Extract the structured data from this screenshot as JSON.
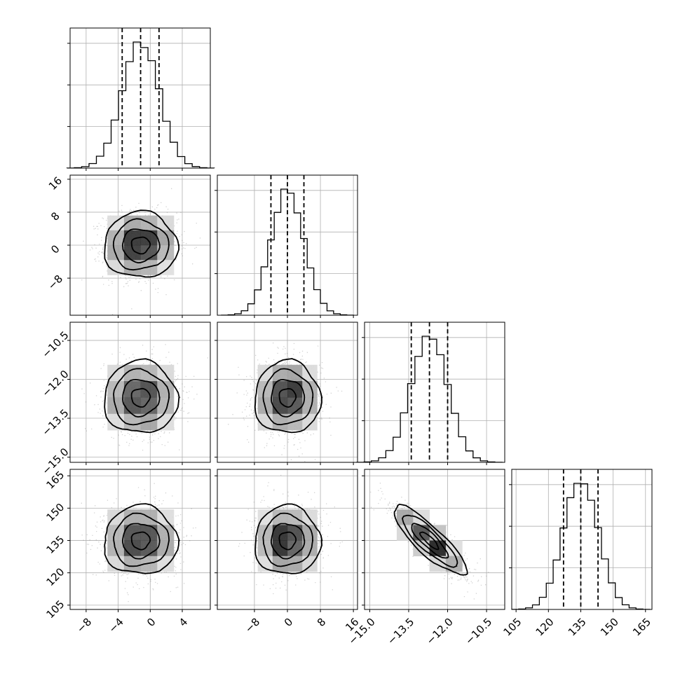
{
  "chart_data": {
    "type": "corner",
    "title": "",
    "grid": true,
    "parameters": [
      {
        "index": 0,
        "range": [
          -10,
          7.5
        ],
        "ticks": [
          -8,
          -4,
          0,
          4
        ],
        "tick_labels": [
          "−8",
          "−4",
          "0",
          "4"
        ],
        "mean": -1.2,
        "sigma": 2.3,
        "quantiles": [
          -3.5,
          -1.2,
          1.1
        ]
      },
      {
        "index": 1,
        "range": [
          -17,
          17
        ],
        "ticks": [
          -8,
          0,
          8,
          16
        ],
        "tick_labels": [
          "−8",
          "0",
          "8",
          "16"
        ],
        "mean": 0,
        "sigma": 4,
        "quantiles": [
          -4,
          0,
          4
        ]
      },
      {
        "index": 2,
        "range": [
          -15.2,
          -9.8
        ],
        "ticks": [
          -15.0,
          -13.5,
          -12.0,
          -10.5
        ],
        "tick_labels": [
          "−15.0",
          "−13.5",
          "−12.0",
          "−10.5"
        ],
        "mean": -12.7,
        "sigma": 0.7,
        "quantiles": [
          -13.4,
          -12.7,
          -12.0
        ]
      },
      {
        "index": 3,
        "range": [
          103,
          168
        ],
        "ticks": [
          105,
          120,
          135,
          150,
          165
        ],
        "tick_labels": [
          "105",
          "120",
          "135",
          "150",
          "165"
        ],
        "mean": 135,
        "sigma": 8,
        "quantiles": [
          127,
          135,
          143
        ]
      }
    ],
    "pairs": [
      {
        "x": 0,
        "y": 1,
        "correlation": 0.0
      },
      {
        "x": 0,
        "y": 2,
        "correlation": 0.0
      },
      {
        "x": 1,
        "y": 2,
        "correlation": 0.0
      },
      {
        "x": 0,
        "y": 3,
        "correlation": 0.0
      },
      {
        "x": 1,
        "y": 3,
        "correlation": 0.0
      },
      {
        "x": 2,
        "y": 3,
        "correlation": -0.85
      }
    ],
    "histogram_bins": 20,
    "contour_levels_sigma": [
      0.5,
      1.0,
      1.5,
      2.0
    ],
    "colors": {
      "ink": "#000000",
      "scatter": "#808080",
      "grid": "#b0b0b0"
    }
  }
}
